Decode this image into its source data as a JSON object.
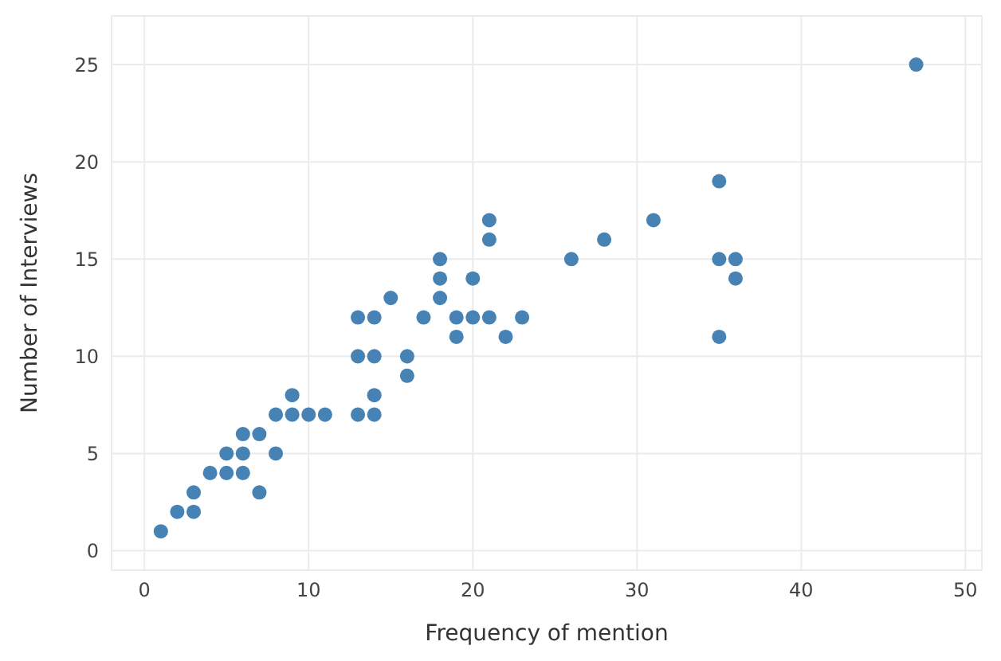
{
  "chart_data": {
    "type": "scatter",
    "xlabel": "Frequency of mention",
    "ylabel": "Number of Interviews",
    "x": [
      1,
      2,
      3,
      3,
      4,
      5,
      5,
      6,
      6,
      6,
      7,
      7,
      8,
      8,
      9,
      9,
      10,
      11,
      13,
      13,
      13,
      14,
      14,
      14,
      14,
      15,
      16,
      16,
      17,
      18,
      18,
      18,
      19,
      19,
      20,
      20,
      21,
      21,
      21,
      22,
      23,
      26,
      28,
      31,
      35,
      35,
      35,
      36,
      36,
      47
    ],
    "values": [
      1,
      2,
      2,
      3,
      4,
      4,
      5,
      4,
      5,
      6,
      6,
      3,
      7,
      5,
      7,
      8,
      7,
      7,
      12,
      10,
      7,
      12,
      10,
      8,
      7,
      13,
      10,
      9,
      12,
      15,
      14,
      13,
      12,
      11,
      14,
      12,
      17,
      16,
      12,
      11,
      12,
      15,
      16,
      17,
      19,
      15,
      11,
      15,
      14,
      25
    ],
    "color": "#4682b4",
    "marker": "circle",
    "xlim": [
      -2,
      51
    ],
    "ylim": [
      -1,
      27.5
    ],
    "xticks": [
      0,
      10,
      20,
      30,
      40,
      50
    ],
    "yticks": [
      0,
      5,
      10,
      15,
      20,
      25
    ],
    "grid": true
  }
}
